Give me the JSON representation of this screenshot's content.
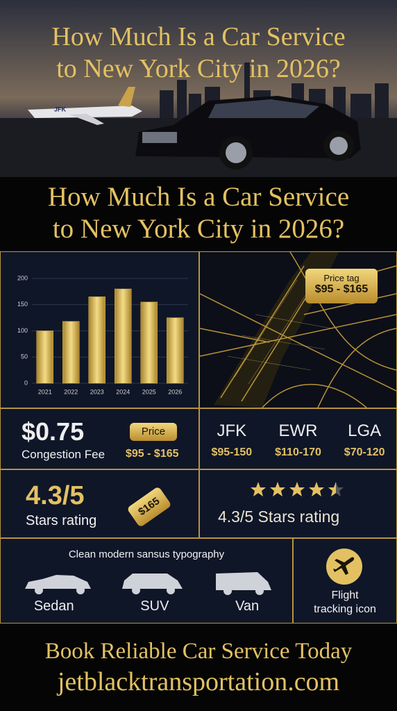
{
  "hero": {
    "title_lines": [
      "How Much Is a Car Service",
      "to New York City  in 2026?"
    ],
    "plane_label": "JFK"
  },
  "headline": {
    "lines": [
      "How Much Is a Car Service",
      "to New York City in 2026?"
    ]
  },
  "chart_data": {
    "type": "bar",
    "categories": [
      "2021",
      "2022",
      "2023",
      "2024",
      "2025",
      "2026"
    ],
    "values": [
      100,
      118,
      165,
      180,
      155,
      125
    ],
    "color": "#d9b54a",
    "ylim": [
      0,
      200
    ],
    "yticks": [
      0,
      50,
      100,
      150,
      200
    ],
    "grid": true
  },
  "map": {
    "tag_label": "Price tag",
    "tag_price": "$95 - $165"
  },
  "congestion": {
    "amount": "$0.75",
    "label": "Congestion Fee",
    "tag_label": "Price",
    "tag_price": "$95 - $165"
  },
  "airports": [
    {
      "code": "JFK",
      "price": "$95-150"
    },
    {
      "code": "EWR",
      "price": "$110-170"
    },
    {
      "code": "LGA",
      "price": "$70-120"
    }
  ],
  "rating_left": {
    "score": "4.3/5",
    "label": "Stars rating",
    "tag": "$165"
  },
  "rating_right": {
    "text": "4.3/5 Stars rating"
  },
  "vehicles": {
    "caption": "Clean modern sansus typography",
    "items": [
      "Sedan",
      "SUV",
      "Van"
    ]
  },
  "flight": {
    "lines": [
      "Flight",
      "tracking icon"
    ]
  },
  "footer": {
    "lines": [
      "Book Reliable Car Service Today",
      "jetblacktransportation.com"
    ]
  }
}
